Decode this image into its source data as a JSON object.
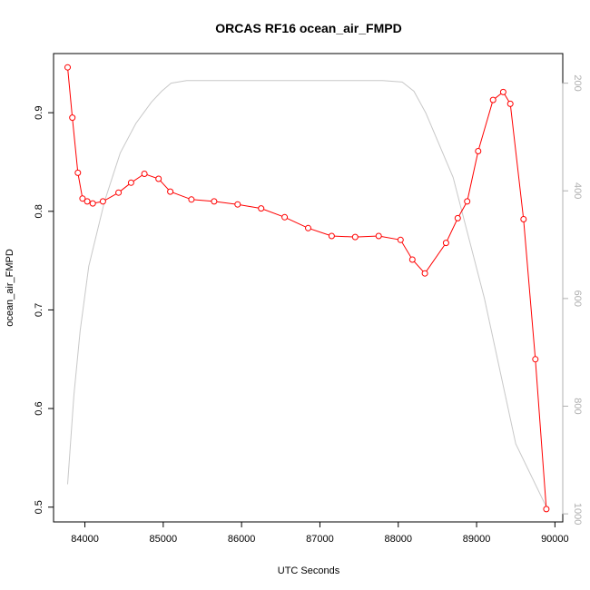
{
  "chart_data": {
    "type": "line",
    "title": "ORCAS RF16 ocean_air_FMPD",
    "xlabel": "UTC Seconds",
    "ylabel": "ocean_air_FMPD",
    "xlim": [
      83600,
      90100
    ],
    "ylim": [
      0.485,
      0.96
    ],
    "y2lim": [
      1015,
      145
    ],
    "y2_reversed": true,
    "x_ticks": [
      84000,
      85000,
      86000,
      87000,
      88000,
      89000,
      90000
    ],
    "y_ticks": [
      0.5,
      0.6,
      0.7,
      0.8,
      0.9
    ],
    "y2_ticks": [
      200,
      400,
      600,
      800,
      1000
    ],
    "grid": false,
    "colors": {
      "series": "#ff0000",
      "secondary": "#c8c8c8",
      "frame": "#000000",
      "axis2": "#b0b0b0"
    },
    "series": [
      {
        "axis": "left",
        "marker": "open-circle",
        "x": [
          83780,
          83840,
          83910,
          83970,
          84030,
          84100,
          84230,
          84430,
          84590,
          84760,
          84940,
          85090,
          85360,
          85650,
          85950,
          86250,
          86550,
          86850,
          87150,
          87450,
          87750,
          88030,
          88180,
          88340,
          88610,
          88760,
          88880,
          89020,
          89210,
          89340,
          89430,
          89600,
          89750,
          89890
        ],
        "values": [
          0.946,
          0.895,
          0.839,
          0.813,
          0.81,
          0.808,
          0.81,
          0.819,
          0.829,
          0.838,
          0.833,
          0.82,
          0.812,
          0.81,
          0.807,
          0.803,
          0.794,
          0.783,
          0.775,
          0.774,
          0.775,
          0.771,
          0.751,
          0.737,
          0.768,
          0.793,
          0.81,
          0.861,
          0.913,
          0.921,
          0.909,
          0.792,
          0.65,
          0.498
        ]
      },
      {
        "axis": "right",
        "x": [
          83780,
          83860,
          83940,
          84050,
          84250,
          84450,
          84650,
          84850,
          84980,
          85100,
          85300,
          86000,
          87000,
          87800,
          88050,
          88200,
          88350,
          88700,
          89100,
          89500,
          89900
        ],
        "values": [
          945,
          780,
          660,
          540,
          420,
          330,
          275,
          235,
          215,
          200,
          195,
          195,
          195,
          195,
          198,
          215,
          255,
          375,
          600,
          870,
          990
        ]
      }
    ]
  }
}
